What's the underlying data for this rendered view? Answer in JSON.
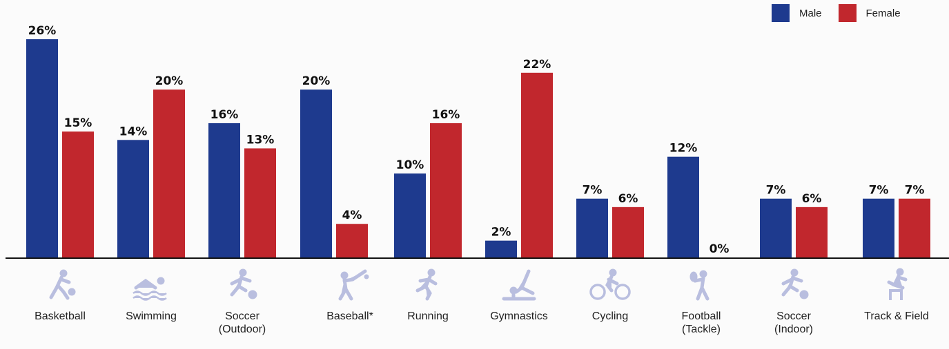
{
  "chart_data": {
    "type": "bar",
    "categories": [
      "Basketball",
      "Swimming",
      "Soccer\n(Outdoor)",
      "Baseball*",
      "Running",
      "Gymnastics",
      "Cycling",
      "Football\n(Tackle)",
      "Soccer\n(Indoor)",
      "Track & Field"
    ],
    "series": [
      {
        "name": "Male",
        "color": "#1e3a8e",
        "values": [
          26,
          14,
          16,
          20,
          10,
          2,
          7,
          12,
          7,
          7
        ],
        "labels": [
          "26%",
          "14%",
          "16%",
          "20%",
          "10%",
          "2%",
          "7%",
          "12%",
          "7%",
          "7%"
        ]
      },
      {
        "name": "Female",
        "color": "#c1272d",
        "values": [
          15,
          20,
          13,
          4,
          16,
          22,
          6,
          0,
          6,
          7
        ],
        "labels": [
          "15%",
          "20%",
          "13%",
          "4%",
          "16%",
          "22%",
          "6%",
          "0%",
          "6%",
          "7%"
        ]
      }
    ],
    "ylim": [
      0,
      26
    ],
    "legend": "top-right",
    "grid": false
  },
  "legend": {
    "male": "Male",
    "female": "Female"
  },
  "icons": [
    "basketball-icon",
    "swimming-icon",
    "soccer-icon",
    "baseball-icon",
    "running-icon",
    "gymnastics-icon",
    "cycling-icon",
    "football-icon",
    "soccer-icon",
    "track-field-icon"
  ],
  "colors": {
    "male": "#1e3a8e",
    "female": "#c1272d",
    "icon": "#b9bedf"
  }
}
